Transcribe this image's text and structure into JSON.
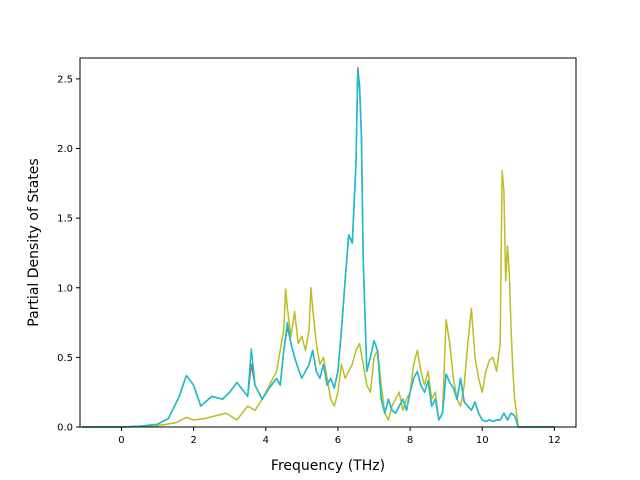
{
  "chart_data": {
    "type": "line",
    "title": "",
    "xlabel": "Frequency (THz)",
    "ylabel": "Partial Density of States",
    "xlim": [
      -1.15,
      12.6
    ],
    "ylim": [
      0.0,
      2.65
    ],
    "xticks": [
      0,
      2,
      4,
      6,
      8,
      10,
      12
    ],
    "yticks": [
      0.0,
      0.5,
      1.0,
      1.5,
      2.0,
      2.5
    ],
    "grid": false,
    "legend": "none",
    "series": [
      {
        "color": "#7f7f7f",
        "x": [
          -1.1,
          0.0,
          0.5,
          1.0,
          1.3,
          1.6,
          1.8,
          2.0,
          2.2,
          2.5,
          2.8,
          3.0,
          3.2,
          3.5,
          3.6,
          3.7,
          3.9,
          4.1,
          4.3,
          4.4,
          4.5,
          4.6,
          4.7,
          4.8,
          4.9,
          5.0,
          5.1,
          5.2,
          5.3,
          5.4,
          5.5,
          5.6,
          5.7,
          5.8,
          5.9,
          6.0,
          6.1,
          6.2,
          6.3,
          6.4,
          6.5,
          6.55,
          6.6,
          6.65,
          6.7,
          6.8,
          6.9,
          7.0,
          7.1,
          7.2,
          7.3,
          7.4,
          7.5,
          7.6,
          7.7,
          7.8,
          7.9,
          8.0,
          8.1,
          8.2,
          8.3,
          8.4,
          8.5,
          8.6,
          8.7,
          8.8,
          8.9,
          9.0,
          9.1,
          9.2,
          9.3,
          9.4,
          9.5,
          9.6,
          9.7,
          9.8,
          9.9,
          10.0,
          10.1,
          10.2,
          10.3,
          10.4,
          10.5,
          10.6,
          10.7,
          10.8,
          10.9,
          11.0,
          12.0
        ],
        "y": [
          0.0,
          0.0,
          0.005,
          0.02,
          0.06,
          0.22,
          0.37,
          0.3,
          0.15,
          0.22,
          0.2,
          0.25,
          0.32,
          0.22,
          0.45,
          0.3,
          0.2,
          0.28,
          0.35,
          0.3,
          0.55,
          0.72,
          0.6,
          0.5,
          0.42,
          0.35,
          0.4,
          0.45,
          0.55,
          0.4,
          0.35,
          0.45,
          0.3,
          0.35,
          0.28,
          0.4,
          0.7,
          1.05,
          1.38,
          1.32,
          1.9,
          2.58,
          2.45,
          2.1,
          1.2,
          0.4,
          0.5,
          0.62,
          0.55,
          0.2,
          0.1,
          0.2,
          0.12,
          0.1,
          0.15,
          0.2,
          0.12,
          0.25,
          0.35,
          0.4,
          0.3,
          0.25,
          0.33,
          0.15,
          0.2,
          0.05,
          0.1,
          0.38,
          0.32,
          0.28,
          0.2,
          0.35,
          0.18,
          0.15,
          0.12,
          0.18,
          0.1,
          0.05,
          0.04,
          0.05,
          0.04,
          0.05,
          0.05,
          0.1,
          0.05,
          0.1,
          0.08,
          0.0,
          0.0
        ]
      },
      {
        "color": "#bcbd22",
        "x": [
          -1.1,
          0.0,
          0.5,
          1.0,
          1.5,
          1.8,
          2.0,
          2.3,
          2.6,
          2.9,
          3.2,
          3.5,
          3.7,
          3.9,
          4.1,
          4.3,
          4.4,
          4.5,
          4.55,
          4.6,
          4.7,
          4.8,
          4.9,
          5.0,
          5.1,
          5.2,
          5.25,
          5.3,
          5.4,
          5.5,
          5.6,
          5.7,
          5.8,
          5.9,
          6.0,
          6.1,
          6.2,
          6.3,
          6.4,
          6.5,
          6.6,
          6.7,
          6.8,
          6.9,
          7.0,
          7.1,
          7.2,
          7.3,
          7.4,
          7.5,
          7.6,
          7.7,
          7.8,
          7.9,
          8.0,
          8.1,
          8.2,
          8.3,
          8.4,
          8.5,
          8.6,
          8.7,
          8.8,
          8.9,
          9.0,
          9.1,
          9.2,
          9.3,
          9.4,
          9.5,
          9.6,
          9.7,
          9.8,
          9.9,
          10.0,
          10.1,
          10.2,
          10.3,
          10.4,
          10.5,
          10.55,
          10.6,
          10.65,
          10.7,
          10.75,
          10.8,
          10.85,
          10.9,
          11.0,
          12.0
        ],
        "y": [
          0.0,
          0.0,
          0.003,
          0.01,
          0.03,
          0.07,
          0.05,
          0.06,
          0.08,
          0.1,
          0.05,
          0.15,
          0.12,
          0.2,
          0.3,
          0.4,
          0.55,
          0.7,
          0.99,
          0.85,
          0.65,
          0.83,
          0.6,
          0.65,
          0.55,
          0.7,
          1.0,
          0.85,
          0.6,
          0.45,
          0.5,
          0.35,
          0.2,
          0.15,
          0.25,
          0.45,
          0.35,
          0.4,
          0.45,
          0.55,
          0.6,
          0.45,
          0.3,
          0.25,
          0.5,
          0.55,
          0.3,
          0.1,
          0.05,
          0.15,
          0.2,
          0.25,
          0.12,
          0.2,
          0.25,
          0.45,
          0.55,
          0.4,
          0.3,
          0.4,
          0.2,
          0.25,
          0.05,
          0.1,
          0.77,
          0.6,
          0.35,
          0.2,
          0.15,
          0.3,
          0.6,
          0.85,
          0.5,
          0.35,
          0.25,
          0.4,
          0.48,
          0.5,
          0.4,
          0.6,
          1.84,
          1.7,
          1.05,
          1.3,
          1.1,
          0.7,
          0.4,
          0.2,
          0.0,
          0.0
        ]
      },
      {
        "color": "#17becf",
        "x": [
          -1.1,
          0.0,
          0.5,
          1.0,
          1.3,
          1.6,
          1.8,
          2.0,
          2.2,
          2.5,
          2.8,
          3.0,
          3.2,
          3.5,
          3.6,
          3.7,
          3.9,
          4.1,
          4.3,
          4.4,
          4.5,
          4.6,
          4.7,
          4.8,
          4.9,
          5.0,
          5.1,
          5.2,
          5.3,
          5.4,
          5.5,
          5.6,
          5.7,
          5.8,
          5.9,
          6.0,
          6.1,
          6.2,
          6.3,
          6.4,
          6.5,
          6.55,
          6.6,
          6.65,
          6.7,
          6.8,
          6.9,
          7.0,
          7.1,
          7.2,
          7.3,
          7.4,
          7.5,
          7.6,
          7.7,
          7.8,
          7.9,
          8.0,
          8.1,
          8.2,
          8.3,
          8.4,
          8.5,
          8.6,
          8.7,
          8.8,
          8.9,
          9.0,
          9.1,
          9.2,
          9.3,
          9.4,
          9.5,
          9.6,
          9.7,
          9.8,
          9.9,
          10.0,
          10.1,
          10.2,
          10.3,
          10.4,
          10.5,
          10.6,
          10.7,
          10.8,
          10.9,
          11.0,
          12.0
        ],
        "y": [
          0.0,
          0.0,
          0.005,
          0.02,
          0.06,
          0.22,
          0.37,
          0.3,
          0.15,
          0.22,
          0.2,
          0.25,
          0.32,
          0.22,
          0.56,
          0.3,
          0.2,
          0.28,
          0.35,
          0.3,
          0.55,
          0.75,
          0.6,
          0.5,
          0.42,
          0.35,
          0.4,
          0.45,
          0.55,
          0.4,
          0.35,
          0.45,
          0.3,
          0.35,
          0.28,
          0.4,
          0.7,
          1.05,
          1.38,
          1.32,
          1.9,
          2.56,
          2.42,
          2.1,
          1.2,
          0.4,
          0.5,
          0.62,
          0.55,
          0.2,
          0.1,
          0.2,
          0.12,
          0.1,
          0.15,
          0.2,
          0.12,
          0.25,
          0.35,
          0.4,
          0.3,
          0.25,
          0.33,
          0.15,
          0.2,
          0.05,
          0.1,
          0.38,
          0.32,
          0.28,
          0.2,
          0.35,
          0.18,
          0.15,
          0.12,
          0.18,
          0.1,
          0.05,
          0.04,
          0.05,
          0.04,
          0.05,
          0.05,
          0.1,
          0.05,
          0.1,
          0.08,
          0.0,
          0.0
        ]
      }
    ]
  }
}
